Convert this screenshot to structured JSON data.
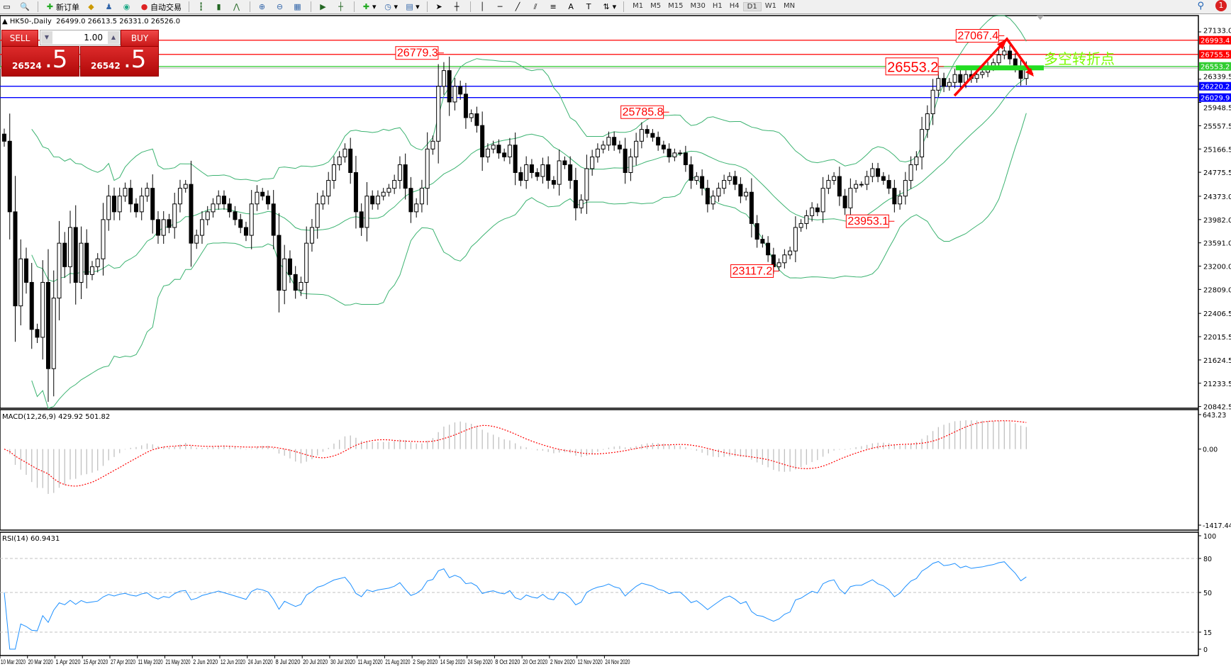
{
  "toolbar": {
    "new_order_label": "新订单",
    "auto_trading_label": "自动交易",
    "timeframes": [
      "M1",
      "M5",
      "M15",
      "M30",
      "H1",
      "H4",
      "D1",
      "W1",
      "MN"
    ],
    "active_timeframe": "D1",
    "notification_count": "1"
  },
  "header": {
    "symbol": "HK50-,Daily",
    "ohlc": "26499.0 26613.5 26331.0 26526.0"
  },
  "trade_panel": {
    "sell_label": "SELL",
    "buy_label": "BUY",
    "lot": "1.00",
    "sell_price_main": "26524",
    "sell_price_frac": ".5",
    "buy_price_main": "26542",
    "buy_price_frac": ".5",
    "color": "#d42020"
  },
  "chart_data": {
    "type": "candlestick",
    "symbol": "HK50-",
    "timeframe": "Daily",
    "ylim": [
      20842.5,
      27133.0
    ],
    "price_ticks": [
      "27133.0",
      "26339.5",
      "25948.5",
      "25557.5",
      "25166.5",
      "24775.5",
      "24373.0",
      "23982.0",
      "23591.0",
      "23200.0",
      "22809.0",
      "22406.5",
      "22015.5",
      "21624.5",
      "21233.5",
      "20842.5"
    ],
    "date_labels": [
      "10 Mar 2020",
      "20 Mar 2020",
      "1 Apr 2020",
      "15 Apr 2020",
      "27 Apr 2020",
      "11 May 2020",
      "21 May 2020",
      "2 Jun 2020",
      "12 Jun 2020",
      "24 Jun 2020",
      "8 Jul 2020",
      "20 Jul 2020",
      "30 Jul 2020",
      "11 Aug 2020",
      "21 Aug 2020",
      "2 Sep 2020",
      "14 Sep 2020",
      "24 Sep 2020",
      "8 Oct 2020",
      "20 Oct 2020",
      "2 Nov 2020",
      "12 Nov 2020",
      "24 Nov 2020"
    ],
    "closes": [
      25297,
      24112,
      22532,
      23322,
      22927,
      22137,
      22005,
      22927,
      21478,
      22663,
      23585,
      23190,
      23849,
      22927,
      23585,
      23059,
      23190,
      23322,
      23981,
      24376,
      24112,
      24376,
      24507,
      24244,
      24112,
      24376,
      24507,
      23981,
      23717,
      23981,
      23849,
      24244,
      24507,
      24573,
      23585,
      23717,
      23981,
      24112,
      24244,
      24376,
      24244,
      24112,
      23981,
      23849,
      23717,
      24244,
      24441,
      24376,
      24244,
      23717,
      22795,
      23322,
      23059,
      22795,
      22927,
      23585,
      23849,
      24244,
      24376,
      24639,
      24902,
      25034,
      25166,
      24771,
      24112,
      23849,
      24376,
      24244,
      24376,
      24441,
      24507,
      24639,
      24902,
      24507,
      24112,
      24244,
      24507,
      25166,
      25297,
      26219,
      26483,
      25956,
      26219,
      26088,
      25693,
      25758,
      25561,
      25034,
      25166,
      25232,
      25100,
      25034,
      25232,
      24771,
      24639,
      24902,
      24771,
      24705,
      24902,
      24639,
      24573,
      24968,
      24902,
      24639,
      24178,
      24310,
      24837,
      25034,
      25166,
      25232,
      25363,
      25232,
      25166,
      24771,
      25034,
      25297,
      25495,
      25429,
      25363,
      25232,
      25166,
      25034,
      25100,
      25100,
      24902,
      24639,
      24705,
      24507,
      24244,
      24376,
      24507,
      24639,
      24705,
      24573,
      24376,
      24441,
      23915,
      23651,
      23585,
      23388,
      23190,
      23256,
      23388,
      23454,
      23849,
      23915,
      24046,
      24178,
      24112,
      24507,
      24639,
      24705,
      24376,
      24178,
      24507,
      24573,
      24573,
      24705,
      24837,
      24705,
      24639,
      24507,
      24244,
      24376,
      24639,
      24902,
      25034,
      25495,
      25758,
      26154,
      26351,
      26219,
      26285,
      26417,
      26285,
      26417,
      26351,
      26417,
      26456,
      26549,
      26614,
      26746,
      26812,
      26680,
      26549,
      26351,
      26526
    ],
    "horizontal_lines": [
      {
        "price": 26993.4,
        "label": "26993.4",
        "color": "#ff0000"
      },
      {
        "price": 26755.5,
        "label": "26755.5",
        "color": "#ff0000"
      },
      {
        "price": 26553.2,
        "label": "26553.2",
        "color": "#32cd32"
      },
      {
        "price": 26220.2,
        "label": "26220.2",
        "color": "#0000ff"
      },
      {
        "price": 26029.9,
        "label": "26029.9",
        "color": "#0000ff"
      }
    ],
    "annotations": [
      {
        "text": "26779.3",
        "candle": 80
      },
      {
        "text": "25785.8",
        "candle": 121
      },
      {
        "text": "23117.2",
        "candle": 141
      },
      {
        "text": "23953.1",
        "candle": 162
      },
      {
        "text": "27067.4",
        "candle": 182
      },
      {
        "text": "26553.2",
        "candle": 171
      }
    ],
    "pivot_label": "多空转折点",
    "pivot_label_color": "#7cfc00",
    "bollinger": {
      "period": 20,
      "deviation": 2,
      "color": "#3cb371"
    },
    "up_color": "#ffffff",
    "down_color": "#000000"
  },
  "macd": {
    "label": "MACD(12,26,9) 429.92 501.82",
    "ticks": [
      "643.23",
      "0.00",
      "-1417.44"
    ],
    "signal_color": "#ff0000",
    "hist_color": "#c0c0c0"
  },
  "rsi": {
    "label": "RSI(14) 60.9431",
    "ticks": [
      "100",
      "80",
      "50",
      "15",
      "0"
    ],
    "levels": [
      80,
      50,
      15
    ],
    "line_color": "#1e90ff"
  }
}
